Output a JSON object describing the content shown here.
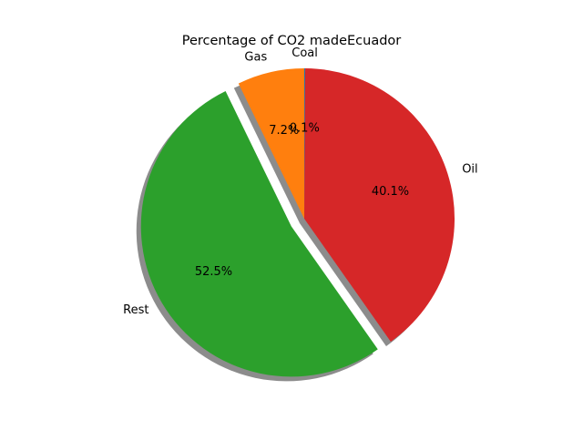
{
  "chart_data": {
    "type": "pie",
    "title": "Percentage of CO2 madeEcuador",
    "labels": [
      "Coal",
      "Oil",
      "Rest",
      "Gas"
    ],
    "values": [
      0.1,
      40.1,
      52.5,
      7.2
    ],
    "pct_labels": [
      "0.1%",
      "40.1%",
      "52.5%",
      "7.2%"
    ],
    "colors": [
      "#1f77b4",
      "#d62728",
      "#2ca02c",
      "#ff7f0e"
    ],
    "explode": [
      0,
      0,
      0.1,
      0
    ],
    "start_angle_deg": 90,
    "direction": "clockwise",
    "shadow": true
  }
}
